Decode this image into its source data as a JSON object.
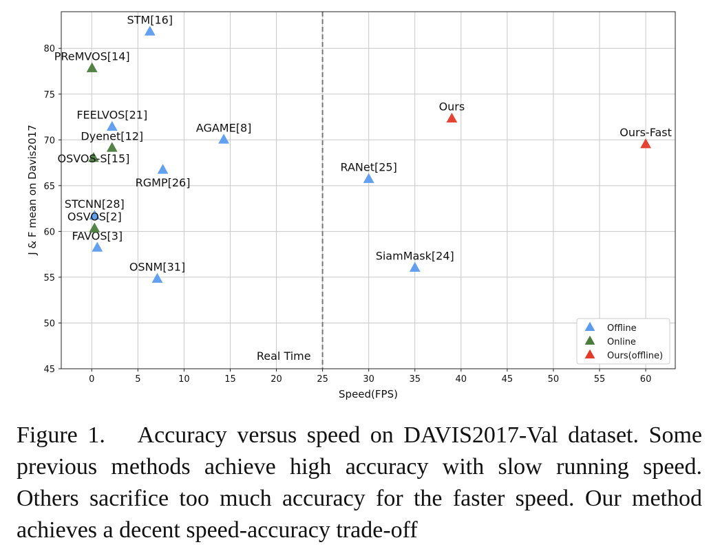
{
  "chart_data": {
    "type": "scatter",
    "title": "",
    "xlabel": "Speed(FPS)",
    "ylabel": "J & F mean on Davis2017",
    "xlim": [
      -3.3,
      63.2
    ],
    "ylim": [
      45,
      84
    ],
    "xticks": [
      0,
      5,
      10,
      15,
      20,
      25,
      30,
      35,
      40,
      45,
      50,
      55,
      60
    ],
    "yticks": [
      45,
      50,
      55,
      60,
      65,
      70,
      75,
      80
    ],
    "grid": true,
    "legend_position": "bottom-right",
    "series": [
      {
        "name": "Offline",
        "color": "#5b9bee",
        "points": [
          {
            "label": "STM[16]",
            "x": 6.3,
            "y": 81.8,
            "label_pos": "above"
          },
          {
            "label": "FEELVOS[21]",
            "x": 2.2,
            "y": 71.4,
            "label_pos": "above"
          },
          {
            "label": "AGAME[8]",
            "x": 14.3,
            "y": 70.0,
            "label_pos": "above"
          },
          {
            "label": "RGMP[26]",
            "x": 7.7,
            "y": 66.7,
            "label_pos": "below"
          },
          {
            "label": "RANet[25]",
            "x": 30.0,
            "y": 65.7,
            "label_pos": "above"
          },
          {
            "label": "STCNN[28]",
            "x": 0.3,
            "y": 61.7,
            "label_pos": "above"
          },
          {
            "label": "FAVOS[3]",
            "x": 0.6,
            "y": 58.2,
            "label_pos": "above"
          },
          {
            "label": "OSNM[31]",
            "x": 7.1,
            "y": 54.8,
            "label_pos": "above"
          },
          {
            "label": "SiamMask[24]",
            "x": 35.0,
            "y": 56.0,
            "label_pos": "above"
          }
        ]
      },
      {
        "name": "Online",
        "color": "#4a7c3c",
        "points": [
          {
            "label": "PReMVOS[14]",
            "x": 0.03,
            "y": 77.8,
            "label_pos": "above"
          },
          {
            "label": "Dyenet[12]",
            "x": 2.2,
            "y": 69.1,
            "label_pos": "above"
          },
          {
            "label": "OSVOS-S[15]",
            "x": 0.2,
            "y": 68.0,
            "label_pos": "on"
          },
          {
            "label": "OSVOS[2]",
            "x": 0.3,
            "y": 60.3,
            "label_pos": "above"
          }
        ]
      },
      {
        "name": "Ours(offline)",
        "color": "#e43a2a",
        "points": [
          {
            "label": "Ours",
            "x": 39.0,
            "y": 72.3,
            "label_pos": "above"
          },
          {
            "label": "Ours-Fast",
            "x": 60.0,
            "y": 69.5,
            "label_pos": "above"
          }
        ]
      }
    ],
    "annotations": [
      {
        "type": "vline",
        "x": 25,
        "style": "dashed",
        "text": "Real Time"
      }
    ]
  },
  "caption": "Figure 1.  Accuracy versus speed on DAVIS2017-Val dataset. Some previous methods achieve high accuracy with slow running speed. Others sacrifice too much accuracy for the faster speed. Our method achieves a decent speed-accuracy trade-off"
}
